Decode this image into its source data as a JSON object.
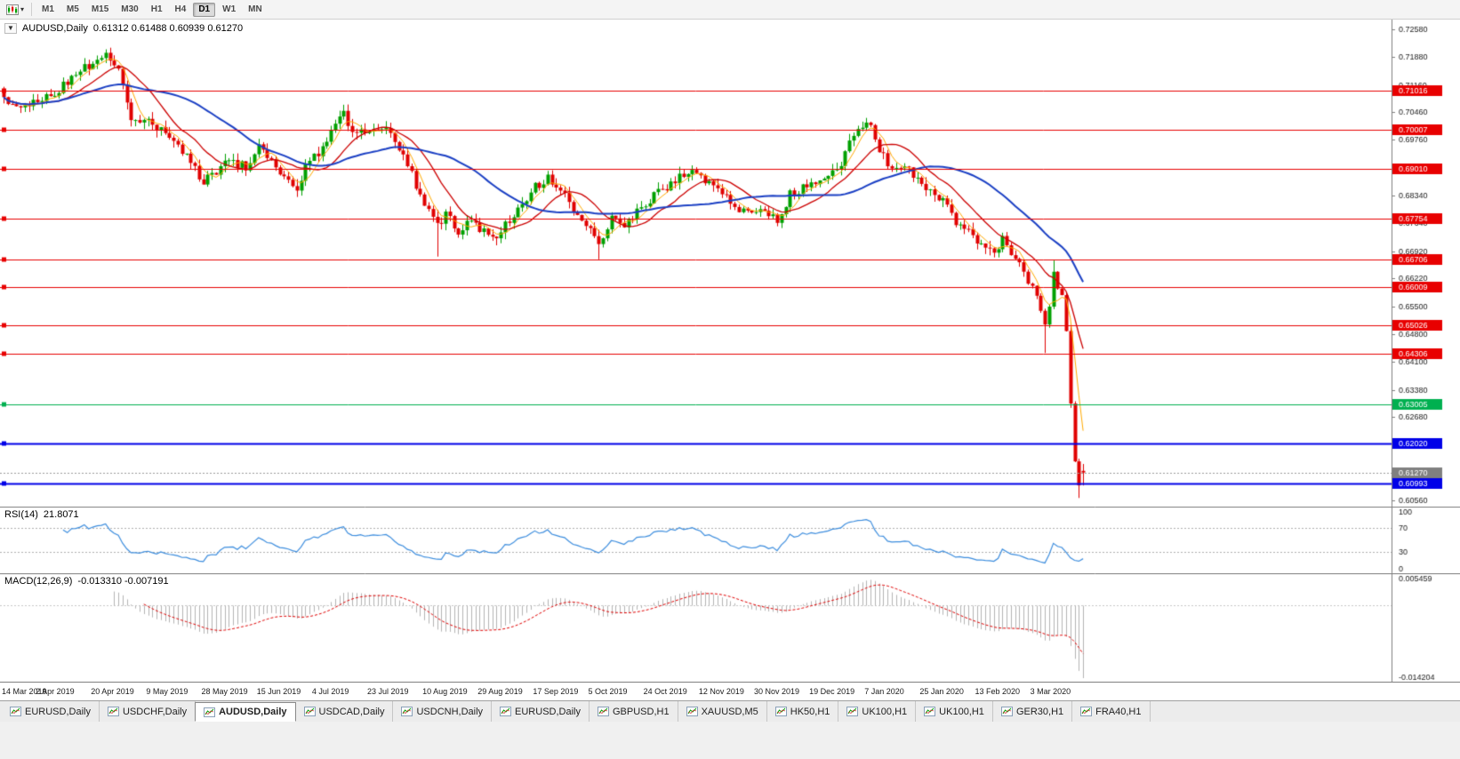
{
  "window": {
    "background": "#f0f0f0"
  },
  "icons": {
    "toolbar_chart_icon": "candlestick-chart-icon",
    "toolbar_caret": "▾",
    "chart_expander": "▼",
    "tab_icon": "mini-chart-icon"
  },
  "toolbar": {
    "timeframes": [
      "M1",
      "M5",
      "M15",
      "M30",
      "H1",
      "H4",
      "D1",
      "W1",
      "MN"
    ],
    "active_timeframe": "D1"
  },
  "chart": {
    "title": "AUDUSD,Daily",
    "ohlc_text": "0.61312 0.61488 0.60939 0.61270",
    "expander_icon": "▼"
  },
  "rsi": {
    "label": "RSI(14)",
    "value": "21.8071",
    "scale_labels": [
      "100",
      "70",
      "30",
      "0"
    ],
    "levels": [
      70,
      30
    ],
    "line_color": "#3c8dde"
  },
  "macd": {
    "label": "MACD(12,26,9)",
    "values": "-0.013310 -0.007191",
    "scale_top": "0.005459",
    "scale_bottom": "-0.014204",
    "histogram_color": "#b4b4b4",
    "signal_color": "#e00000"
  },
  "chart_data": {
    "type": "candlestick",
    "symbol": "AUDUSD",
    "period": "Daily",
    "current": {
      "open": 0.61312,
      "high": 0.61488,
      "low": 0.60939,
      "close": 0.6127
    },
    "y_axis_ticks": [
      "0.72580",
      "0.71880",
      "0.71160",
      "0.70460",
      "0.69760",
      "0.69040",
      "0.68340",
      "0.67640",
      "0.66920",
      "0.66220",
      "0.65500",
      "0.64800",
      "0.64100",
      "0.63380",
      "0.62680",
      "0.61960",
      "0.60560"
    ],
    "y_max": 0.7283,
    "y_min": 0.604,
    "x_labels": [
      "14 Mar 2019",
      "2 Apr 2019",
      "20 Apr 2019",
      "9 May 2019",
      "28 May 2019",
      "15 Jun 2019",
      "4 Jul 2019",
      "23 Jul 2019",
      "10 Aug 2019",
      "29 Aug 2019",
      "17 Sep 2019",
      "5 Oct 2019",
      "24 Oct 2019",
      "12 Nov 2019",
      "30 Nov 2019",
      "19 Dec 2019",
      "7 Jan 2020",
      "25 Jan 2020",
      "13 Feb 2020",
      "3 Mar 2020"
    ],
    "label_every": 13,
    "candle_count": 255,
    "up_color": "#00a000",
    "down_color": "#e00000",
    "horizontal_lines": [
      {
        "price": 0.71016,
        "label": "0.71016",
        "color": "#e80000",
        "width": 1
      },
      {
        "price": 0.70007,
        "label": "0.70007",
        "color": "#e80000",
        "width": 1
      },
      {
        "price": 0.6901,
        "label": "0.69010",
        "color": "#e80000",
        "width": 1
      },
      {
        "price": 0.67754,
        "label": "0.67754",
        "color": "#e80000",
        "width": 1
      },
      {
        "price": 0.66706,
        "label": "0.66706",
        "color": "#e80000",
        "width": 1
      },
      {
        "price": 0.66009,
        "label": "0.66009",
        "color": "#e80000",
        "width": 1
      },
      {
        "price": 0.65026,
        "label": "0.65026",
        "color": "#e80000",
        "width": 1
      },
      {
        "price": 0.64306,
        "label": "0.64306",
        "color": "#e80000",
        "width": 1
      },
      {
        "price": 0.63005,
        "label": "0.63005",
        "color": "#00b050",
        "width": 1
      },
      {
        "price": 0.6202,
        "label": "0.62020",
        "color": "#0000e8",
        "width": 2
      },
      {
        "price": 0.60993,
        "label": "0.60993",
        "color": "#0000e8",
        "width": 2
      }
    ],
    "current_price": {
      "value": 0.6127,
      "label": "0.61270",
      "box_color": "#808080"
    },
    "ma_lines": [
      {
        "period": 5,
        "color": "#ffaa00",
        "width": 1
      },
      {
        "period": 13,
        "color": "#cc0000",
        "width": 1.3
      },
      {
        "period": 34,
        "color": "#1a3fc4",
        "width": 2
      }
    ],
    "price_path": [
      [
        0,
        0.7085
      ],
      [
        4,
        0.7058
      ],
      [
        8,
        0.707
      ],
      [
        12,
        0.7098
      ],
      [
        16,
        0.7128
      ],
      [
        20,
        0.7168
      ],
      [
        24,
        0.7188
      ],
      [
        27,
        0.715
      ],
      [
        30,
        0.7018
      ],
      [
        33,
        0.703
      ],
      [
        36,
        0.7008
      ],
      [
        39,
        0.6992
      ],
      [
        43,
        0.6938
      ],
      [
        47,
        0.6868
      ],
      [
        50,
        0.6895
      ],
      [
        53,
        0.6922
      ],
      [
        57,
        0.6905
      ],
      [
        60,
        0.6962
      ],
      [
        63,
        0.692
      ],
      [
        66,
        0.6872
      ],
      [
        69,
        0.6858
      ],
      [
        72,
        0.6928
      ],
      [
        75,
        0.6955
      ],
      [
        78,
        0.7022
      ],
      [
        80,
        0.7038
      ],
      [
        83,
        0.6988
      ],
      [
        86,
        0.7002
      ],
      [
        89,
        0.7012
      ],
      [
        91,
        0.6985
      ],
      [
        94,
        0.6942
      ],
      [
        97,
        0.6862
      ],
      [
        100,
        0.6798
      ],
      [
        102,
        0.6752
      ],
      [
        104,
        0.6788
      ],
      [
        107,
        0.6742
      ],
      [
        110,
        0.6772
      ],
      [
        113,
        0.6738
      ],
      [
        116,
        0.6728
      ],
      [
        119,
        0.6772
      ],
      [
        122,
        0.6812
      ],
      [
        125,
        0.6858
      ],
      [
        128,
        0.6878
      ],
      [
        131,
        0.6858
      ],
      [
        134,
        0.6792
      ],
      [
        137,
        0.6758
      ],
      [
        140,
        0.6702
      ],
      [
        143,
        0.6772
      ],
      [
        146,
        0.6748
      ],
      [
        149,
        0.6792
      ],
      [
        152,
        0.6822
      ],
      [
        155,
        0.6852
      ],
      [
        158,
        0.6872
      ],
      [
        161,
        0.6898
      ],
      [
        164,
        0.6878
      ],
      [
        167,
        0.6852
      ],
      [
        170,
        0.6832
      ],
      [
        173,
        0.6798
      ],
      [
        176,
        0.6788
      ],
      [
        179,
        0.6795
      ],
      [
        182,
        0.6772
      ],
      [
        185,
        0.6838
      ],
      [
        188,
        0.6852
      ],
      [
        191,
        0.6862
      ],
      [
        194,
        0.6888
      ],
      [
        197,
        0.6912
      ],
      [
        200,
        0.6988
      ],
      [
        203,
        0.7028
      ],
      [
        206,
        0.6952
      ],
      [
        209,
        0.6902
      ],
      [
        212,
        0.6912
      ],
      [
        215,
        0.6872
      ],
      [
        218,
        0.6852
      ],
      [
        221,
        0.6822
      ],
      [
        224,
        0.6768
      ],
      [
        227,
        0.6742
      ],
      [
        230,
        0.6712
      ],
      [
        233,
        0.6688
      ],
      [
        235,
        0.6722
      ],
      [
        237,
        0.6692
      ],
      [
        239,
        0.6658
      ],
      [
        241,
        0.6618
      ],
      [
        243,
        0.6582
      ],
      [
        245,
        0.6502
      ],
      [
        246,
        0.6548
      ],
      [
        247,
        0.6638
      ],
      [
        248,
        0.6598
      ],
      [
        249,
        0.6578
      ],
      [
        250,
        0.6488
      ],
      [
        251,
        0.6302
      ],
      [
        252,
        0.6158
      ],
      [
        253,
        0.6092
      ],
      [
        254,
        0.6127
      ]
    ],
    "wick_overrides": [
      {
        "i": 24,
        "high": 0.7207
      },
      {
        "i": 47,
        "low": 0.6862
      },
      {
        "i": 102,
        "low": 0.6678
      },
      {
        "i": 140,
        "low": 0.6671
      },
      {
        "i": 203,
        "high": 0.7032
      },
      {
        "i": 245,
        "low": 0.6432
      },
      {
        "i": 247,
        "high": 0.6668
      },
      {
        "i": 251,
        "high": 0.65,
        "low": 0.6292
      },
      {
        "i": 253,
        "low": 0.6062
      }
    ],
    "noise": 0.0024,
    "wick": 0.0018
  },
  "tabs": [
    {
      "label": "EURUSD,Daily",
      "active": false
    },
    {
      "label": "USDCHF,Daily",
      "active": false
    },
    {
      "label": "AUDUSD,Daily",
      "active": true
    },
    {
      "label": "USDCAD,Daily",
      "active": false
    },
    {
      "label": "USDCNH,Daily",
      "active": false
    },
    {
      "label": "EURUSD,Daily",
      "active": false
    },
    {
      "label": "GBPUSD,H1",
      "active": false
    },
    {
      "label": "XAUUSD,M5",
      "active": false
    },
    {
      "label": "HK50,H1",
      "active": false
    },
    {
      "label": "UK100,H1",
      "active": false
    },
    {
      "label": "UK100,H1",
      "active": false
    },
    {
      "label": "GER30,H1",
      "active": false
    },
    {
      "label": "FRA40,H1",
      "active": false
    }
  ]
}
